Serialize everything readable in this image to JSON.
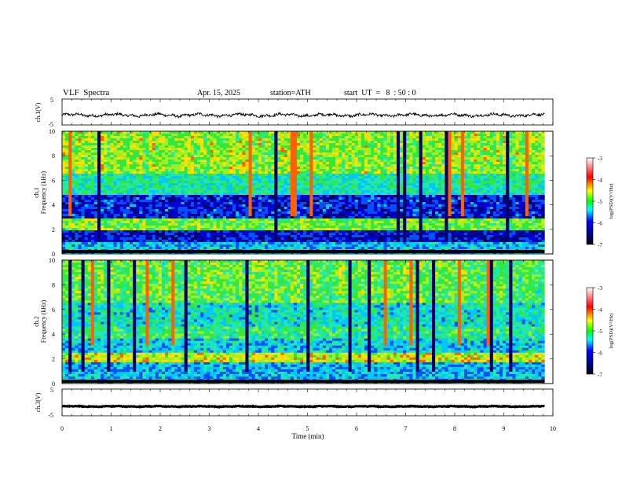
{
  "header": {
    "title": "VLF  Spectra",
    "date": "Apr. 15, 2025",
    "station": "station=ATH",
    "start": "start  UT  =   8  : 50 : 0"
  },
  "colors": {
    "trace": "#000000",
    "axis": "#000000",
    "spectral_scale": [
      "#000000",
      "#00008b",
      "#0000ff",
      "#00ffff",
      "#00ff00",
      "#ffff00",
      "#ff0000",
      "#ffffff"
    ]
  },
  "chart_data": [
    {
      "type": "line",
      "name": "ch1-waveform",
      "ylabel": "ch.1(V)",
      "xlim": [
        0,
        10
      ],
      "ylim": [
        -5,
        5
      ],
      "yticks": [
        "5",
        "-5"
      ],
      "description_values": {
        "mean": -1.2,
        "amplitude": 0.8
      }
    },
    {
      "type": "heatmap",
      "name": "ch1-spectrogram",
      "ylabel": "ch.1\nFrequency (kHz)",
      "ylabel_channel": "ch.1",
      "ylabel_freq": "Frequency  (kHz)",
      "xlim": [
        0,
        10
      ],
      "ylim": [
        0,
        10
      ],
      "yticks": [
        "0",
        "2",
        "4",
        "6",
        "8",
        "10"
      ],
      "colorbar": {
        "label": "log(PSD)(V²/Hz)",
        "range": [
          -7,
          -3
        ],
        "ticks": [
          "-3",
          "-4",
          "-5",
          "-6",
          "-7"
        ]
      }
    },
    {
      "type": "heatmap",
      "name": "ch2-spectrogram",
      "ylabel_channel": "ch.2",
      "ylabel_freq": "Frequency  (kHz)",
      "xlim": [
        0,
        10
      ],
      "ylim": [
        0,
        10
      ],
      "yticks": [
        "0",
        "2",
        "4",
        "6",
        "8",
        "10"
      ],
      "colorbar": {
        "label": "log(PSD)(V²/Hz)",
        "range": [
          -7,
          -3
        ],
        "ticks": [
          "-3",
          "-4",
          "-5",
          "-6",
          "-7"
        ]
      }
    },
    {
      "type": "line",
      "name": "ch3-waveform",
      "ylabel": "ch.3(V)",
      "xlim": [
        0,
        10
      ],
      "ylim": [
        -5,
        5
      ],
      "yticks": [
        "5",
        "-5"
      ],
      "description_values": {
        "mean": -1.5,
        "amplitude": 0.2
      }
    }
  ],
  "xaxis": {
    "label": "Time  (min)",
    "ticks": [
      "0",
      "1",
      "2",
      "3",
      "4",
      "5",
      "6",
      "7",
      "8",
      "9",
      "10"
    ],
    "data_end": 9.83
  }
}
